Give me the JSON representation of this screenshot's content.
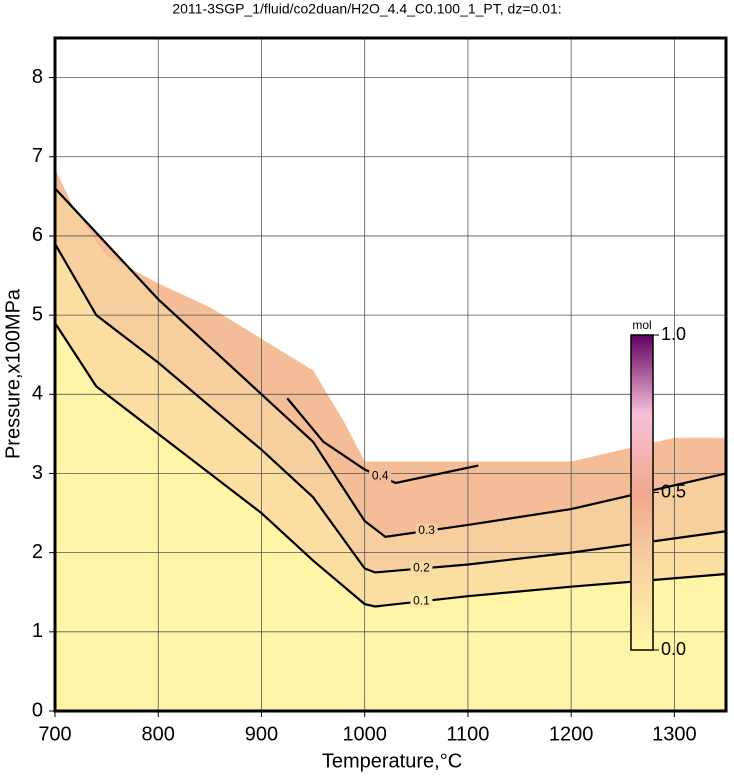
{
  "chart_data": {
    "type": "contour",
    "title": "2011-3SGP_1/fluid/co2duan/H2O_4.4_C0.100_1_PT, dz=0.01:",
    "x_label": "Temperature,°C",
    "y_label": "Pressure,x100MPa",
    "xlim": [
      700,
      1350
    ],
    "ylim": [
      0,
      8.5
    ],
    "xticks": [
      700,
      800,
      900,
      1000,
      1100,
      1200,
      1300
    ],
    "yticks": [
      0,
      1,
      2,
      3,
      4,
      5,
      6,
      7,
      8
    ],
    "grid": true,
    "region_top": {
      "x": [
        700,
        720,
        750,
        800,
        850,
        900,
        950,
        980,
        1000,
        1200,
        1300,
        1350
      ],
      "y": [
        6.85,
        6.3,
        5.75,
        5.4,
        5.1,
        4.7,
        4.3,
        3.65,
        3.15,
        3.15,
        3.45,
        3.45
      ]
    },
    "series": [
      {
        "name": "0.1",
        "level": 0.1,
        "x": [
          700,
          740,
          800,
          900,
          950,
          1000,
          1010,
          1100,
          1200,
          1350
        ],
        "values": [
          4.9,
          4.1,
          3.5,
          2.5,
          1.9,
          1.35,
          1.32,
          1.45,
          1.57,
          1.73
        ]
      },
      {
        "name": "0.2",
        "level": 0.2,
        "x": [
          700,
          740,
          800,
          900,
          950,
          1000,
          1010,
          1100,
          1200,
          1350
        ],
        "values": [
          5.9,
          5.0,
          4.4,
          3.3,
          2.7,
          1.8,
          1.75,
          1.85,
          2.0,
          2.27
        ]
      },
      {
        "name": "0.3",
        "level": 0.3,
        "x": [
          700,
          800,
          850,
          900,
          950,
          1000,
          1020,
          1100,
          1200,
          1350
        ],
        "values": [
          6.6,
          5.2,
          4.6,
          4.0,
          3.4,
          2.4,
          2.2,
          2.35,
          2.55,
          3.0
        ]
      },
      {
        "name": "0.4",
        "level": 0.4,
        "x": [
          925,
          960,
          1000,
          1030,
          1110
        ],
        "values": [
          3.95,
          3.4,
          3.05,
          2.88,
          3.1
        ]
      }
    ],
    "colorbar": {
      "label": "mol",
      "lim": [
        0,
        1
      ],
      "ticks": [
        {
          "value": 1,
          "label": "1.0"
        },
        {
          "value": 0.5,
          "label": "0.5"
        },
        {
          "value": 0,
          "label": "0.0"
        }
      ],
      "colors": [
        "#fff8a8",
        "#f8d4a0",
        "#f0a890",
        "#f8c0d8",
        "#600060"
      ]
    }
  }
}
